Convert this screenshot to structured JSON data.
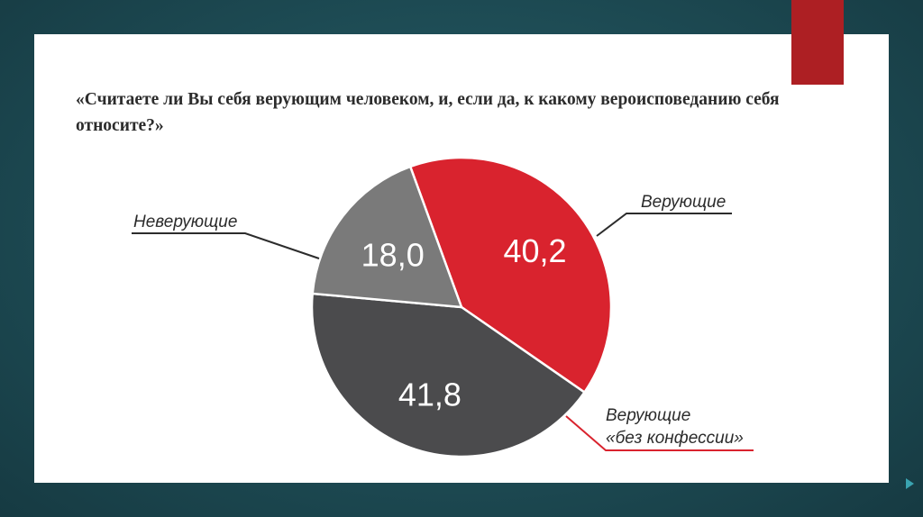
{
  "slide": {
    "question": "«Считаете ли Вы себя верующим человеком, и, если да, к какому вероисповеданию себя относите?»"
  },
  "colors": {
    "believers": "#d9232e",
    "nonbelievers": "#7a7a7a",
    "no_confession": "#4b4b4d",
    "accent": "#ad1f23"
  },
  "chart_data": {
    "type": "pie",
    "title": "«Считаете ли Вы себя верующим человеком, и, если да, к какому вероисповеданию себя относите?»",
    "legend": "callout-labels",
    "slices": [
      {
        "label": "Верующие",
        "value": 40.2,
        "value_text": "40,2",
        "color": "#d9232e"
      },
      {
        "label_line1": "Верующие",
        "label_line2": "«без конфессии»",
        "value": 41.8,
        "value_text": "41,8",
        "color": "#4b4b4d"
      },
      {
        "label": "Неверующие",
        "value": 18.0,
        "value_text": "18,0",
        "color": "#7a7a7a"
      }
    ]
  }
}
